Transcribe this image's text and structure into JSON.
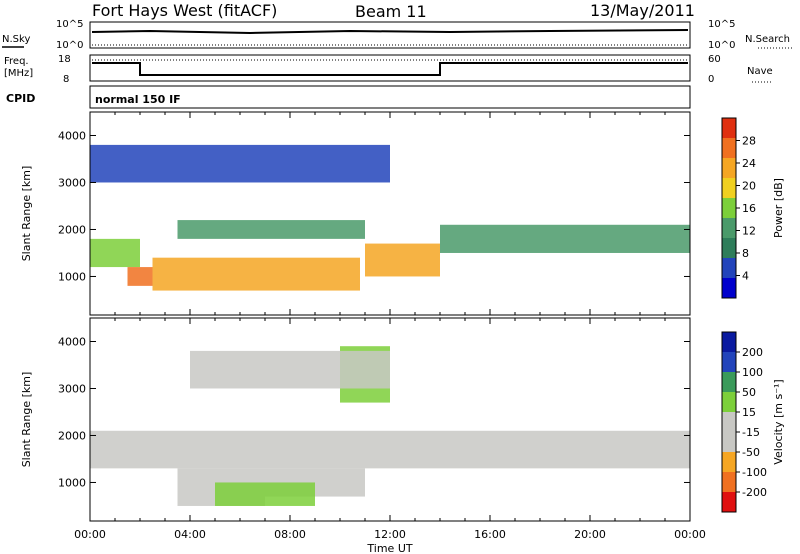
{
  "header": {
    "station": "Fort Hays West (fitACF)",
    "beam": "Beam 11",
    "date": "13/May/2011"
  },
  "top_panels": {
    "nsky_label_top": "N.Sky",
    "nsky_tick_hi": "10^5",
    "nsky_tick_lo": "10^0",
    "nsearch_label": "N.Search",
    "nsearch_tick_hi": "10^5",
    "nsearch_tick_lo": "10^0",
    "freq_label": "Freq.",
    "freq_unit": "[MHz]",
    "freq_tick_hi": "18",
    "freq_tick_lo": "8",
    "nave_label": "Nave",
    "nave_tick_hi": "60",
    "nave_tick_lo": "0",
    "cpid_label": "CPID",
    "cpid_value": "normal 150 IF"
  },
  "chart_data": [
    {
      "type": "heatmap",
      "title": "Power",
      "xlabel": "",
      "ylabel": "Slant Range [km]",
      "xlim_hours": [
        0,
        24
      ],
      "ylim_km": [
        180,
        4500
      ],
      "y_ticks": [
        "1000",
        "2000",
        "3000",
        "4000"
      ],
      "colorbar_label": "Power [dB]",
      "colorbar_ticks": [
        "28",
        "24",
        "20",
        "16",
        "12",
        "8",
        "4"
      ],
      "colorbar_range": [
        0,
        30
      ],
      "colors": [
        "#0000cc",
        "#2244bb",
        "#2e7d5a",
        "#4a9a6a",
        "#7ccf3a",
        "#f0d020",
        "#f5a623",
        "#f07020",
        "#e03010"
      ],
      "bands": [
        {
          "x_start": 0,
          "x_end": 2,
          "y_start": 1200,
          "y_end": 1800,
          "level": 16
        },
        {
          "x_start": 1.5,
          "x_end": 2.5,
          "y_start": 800,
          "y_end": 1200,
          "level": 26
        },
        {
          "x_start": 2.5,
          "x_end": 10.8,
          "y_start": 700,
          "y_end": 1400,
          "level": 22
        },
        {
          "x_start": 3.5,
          "x_end": 11,
          "y_start": 1800,
          "y_end": 2200,
          "level": 10
        },
        {
          "x_start": 11,
          "x_end": 14,
          "y_start": 1000,
          "y_end": 1700,
          "level": 20
        },
        {
          "x_start": 14,
          "x_end": 24,
          "y_start": 1500,
          "y_end": 2100,
          "level": 12
        },
        {
          "x_start": 0,
          "x_end": 12,
          "y_start": 3000,
          "y_end": 3800,
          "level": 4
        }
      ]
    },
    {
      "type": "heatmap",
      "title": "Velocity",
      "xlabel": "Time UT",
      "ylabel": "Slant Range [km]",
      "xlim_hours": [
        0,
        24
      ],
      "ylim_km": [
        180,
        4500
      ],
      "x_ticks": [
        "00:00",
        "04:00",
        "08:00",
        "12:00",
        "16:00",
        "20:00",
        "00:00"
      ],
      "y_ticks": [
        "1000",
        "2000",
        "3000",
        "4000"
      ],
      "colorbar_label": "Velocity [m s⁻¹]",
      "colorbar_ticks": [
        "200",
        "100",
        "50",
        "15",
        "-15",
        "-50",
        "-100",
        "-200"
      ],
      "colorbar_range": [
        -250,
        250
      ],
      "colors": [
        "#e01010",
        "#f07020",
        "#f5a623",
        "#c8c8c4",
        "#c8c8c4",
        "#7ccf3a",
        "#3a9a5a",
        "#2244bb",
        "#0a1aa0"
      ],
      "bands": [
        {
          "x_start": 0,
          "x_end": 24,
          "y_start": 1300,
          "y_end": 2100,
          "level": 0
        },
        {
          "x_start": 3.5,
          "x_end": 7,
          "y_start": 500,
          "y_end": 1300,
          "level": -40
        },
        {
          "x_start": 7,
          "x_end": 11,
          "y_start": 700,
          "y_end": 1300,
          "level": -40
        },
        {
          "x_start": 5,
          "x_end": 9,
          "y_start": 500,
          "y_end": 1000,
          "level": 40
        },
        {
          "x_start": 10,
          "x_end": 12,
          "y_start": 2700,
          "y_end": 3900,
          "level": 40
        },
        {
          "x_start": 4,
          "x_end": 12,
          "y_start": 3000,
          "y_end": 3800,
          "level": 0
        }
      ]
    }
  ]
}
